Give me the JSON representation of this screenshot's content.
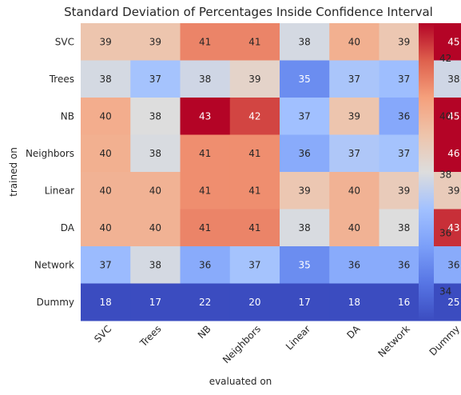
{
  "chart_data": {
    "type": "heatmap",
    "title": "Standard Deviation of Percentages Inside Confidence Interval",
    "xlabel": "evaluated on",
    "ylabel": "trained on",
    "x_categories": [
      "SVC",
      "Trees",
      "NB",
      "Neighbors",
      "Linear",
      "DA",
      "Network",
      "Dummy"
    ],
    "y_categories": [
      "SVC",
      "Trees",
      "NB",
      "Neighbors",
      "Linear",
      "DA",
      "Network",
      "Dummy"
    ],
    "values": [
      [
        39,
        39,
        41,
        41,
        38,
        40,
        39,
        45
      ],
      [
        38,
        37,
        38,
        39,
        35,
        37,
        37,
        38
      ],
      [
        40,
        38,
        43,
        42,
        37,
        39,
        36,
        45
      ],
      [
        40,
        38,
        41,
        41,
        36,
        37,
        37,
        46
      ],
      [
        40,
        40,
        41,
        41,
        39,
        40,
        39,
        39
      ],
      [
        40,
        40,
        41,
        41,
        38,
        40,
        38,
        43
      ],
      [
        37,
        38,
        36,
        37,
        35,
        36,
        36,
        36
      ],
      [
        18,
        17,
        22,
        20,
        17,
        18,
        16,
        25
      ]
    ],
    "color_values": [
      [
        39.3,
        39.3,
        41.2,
        41.2,
        37.9,
        40.1,
        39.2,
        43.2
      ],
      [
        37.9,
        36.9,
        37.8,
        38.6,
        35.0,
        37.0,
        36.7,
        37.8
      ],
      [
        40.2,
        38.1,
        43.2,
        42.3,
        36.8,
        39.3,
        35.9,
        43.2
      ],
      [
        40.1,
        38.0,
        41.0,
        41.0,
        36.0,
        37.1,
        36.9,
        43.2
      ],
      [
        40.0,
        40.0,
        41.0,
        41.0,
        39.2,
        40.0,
        39.0,
        39.0
      ],
      [
        40.0,
        40.0,
        41.2,
        41.2,
        38.0,
        40.0,
        38.1,
        42.6
      ],
      [
        36.6,
        37.9,
        36.0,
        36.9,
        35.0,
        36.0,
        36.0,
        36.0
      ],
      [
        33.0,
        33.0,
        33.0,
        33.0,
        33.0,
        33.0,
        33.0,
        33.0
      ]
    ],
    "colormap": "coolwarm",
    "colorbar": {
      "vmin": 33.0,
      "vmax": 43.2,
      "ticks": [
        34,
        36,
        38,
        40,
        42
      ]
    },
    "grid": false
  }
}
